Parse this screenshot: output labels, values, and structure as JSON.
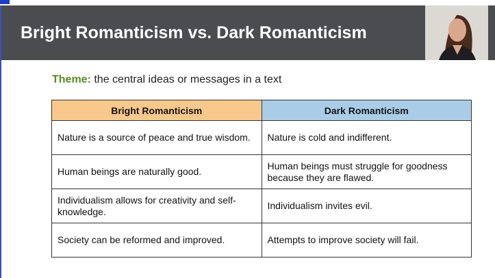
{
  "header": {
    "title": "Bright Romanticism vs. Dark Romanticism"
  },
  "theme": {
    "label": "Theme:",
    "text": "the central ideas or messages in a text"
  },
  "table": {
    "headers": [
      "Bright Romanticism",
      "Dark Romanticism"
    ],
    "rows": [
      [
        "Nature is a source of peace and true wisdom.",
        "Nature is cold and indifferent."
      ],
      [
        "Human beings are naturally good.",
        "Human beings must struggle for goodness because they are flawed."
      ],
      [
        "Individualism allows for creativity and self-knowledge.",
        "Individualism invites evil."
      ],
      [
        "Society can be reformed and improved.",
        "Attempts to improve society will fail."
      ]
    ]
  }
}
